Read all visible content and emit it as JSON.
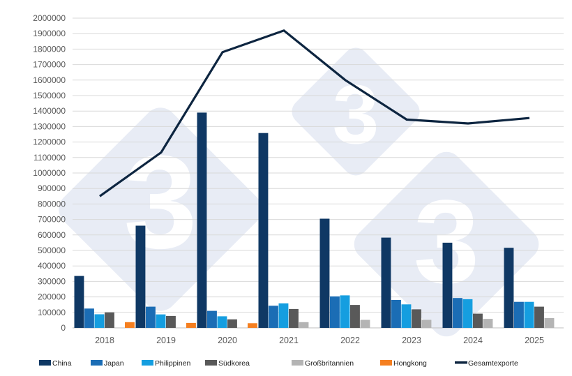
{
  "chart_data": {
    "type": "bar+line",
    "title": "",
    "xlabel": "",
    "ylabel": "",
    "ylim": [
      0,
      2000000
    ],
    "ytick_step": 100000,
    "grid": true,
    "legend_position": "bottom",
    "categories": [
      "2018",
      "2019",
      "2020",
      "2021",
      "2022",
      "2023",
      "2024",
      "2025"
    ],
    "series": [
      {
        "name": "China",
        "type": "bar",
        "color": "#0f3864",
        "values": [
          335000,
          660000,
          1390000,
          1258000,
          705000,
          583000,
          550000,
          517000
        ]
      },
      {
        "name": "Japan",
        "type": "bar",
        "color": "#1b6db5",
        "values": [
          125000,
          137000,
          110000,
          143000,
          203000,
          180000,
          193000,
          168000
        ]
      },
      {
        "name": "Philippinen",
        "type": "bar",
        "color": "#159ee0",
        "values": [
          88000,
          87000,
          75000,
          158000,
          210000,
          152000,
          185000,
          168000
        ]
      },
      {
        "name": "Südkorea",
        "type": "bar",
        "color": "#595959",
        "values": [
          100000,
          77000,
          55000,
          122000,
          148000,
          120000,
          92000,
          137000
        ]
      },
      {
        "name": "Großbritannien",
        "type": "bar",
        "color": "#b4b4b4",
        "values": [
          0,
          0,
          0,
          37000,
          52000,
          52000,
          58000,
          63000
        ]
      },
      {
        "name": "Hongkong",
        "type": "bar",
        "color": "#f57f20",
        "values": [
          37000,
          32000,
          30000,
          0,
          0,
          0,
          0,
          0
        ]
      },
      {
        "name": "Gesamtexporte",
        "type": "line",
        "color": "#0d2540",
        "values": [
          850000,
          1133000,
          1780000,
          1920000,
          1600000,
          1345000,
          1320000,
          1355000
        ]
      }
    ]
  }
}
